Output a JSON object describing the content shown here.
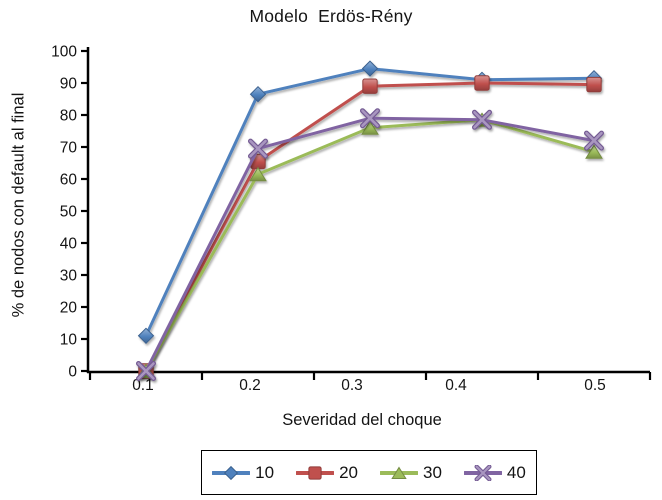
{
  "chart_data": {
    "type": "line",
    "title": "Modelo  Erdös-Rény",
    "xlabel": "Severidad del choque",
    "ylabel": "% de nodos con default al final",
    "x": [
      0.1,
      0.2,
      0.3,
      0.4,
      0.5
    ],
    "x_tick_labels": [
      "0.1",
      "0.2",
      "0.3",
      "0.4",
      "0.5"
    ],
    "ylim": [
      0,
      100
    ],
    "y_tick_step": 10,
    "grid": false,
    "legend_position": "bottom-outside",
    "axis_color": "#000000",
    "series": [
      {
        "name": "10",
        "marker": "diamond",
        "color": "#4F81BD",
        "values": [
          11,
          86.5,
          94.5,
          91,
          91.5
        ]
      },
      {
        "name": "20",
        "marker": "square",
        "color": "#C0504D",
        "values": [
          0,
          65.5,
          89,
          90,
          89.5
        ]
      },
      {
        "name": "30",
        "marker": "triangle",
        "color": "#9BBB59",
        "values": [
          0,
          61.5,
          76,
          78.5,
          68.5
        ]
      },
      {
        "name": "40",
        "marker": "x",
        "color": "#8064A2",
        "values": [
          0,
          69.5,
          79,
          78.5,
          72
        ]
      }
    ]
  }
}
